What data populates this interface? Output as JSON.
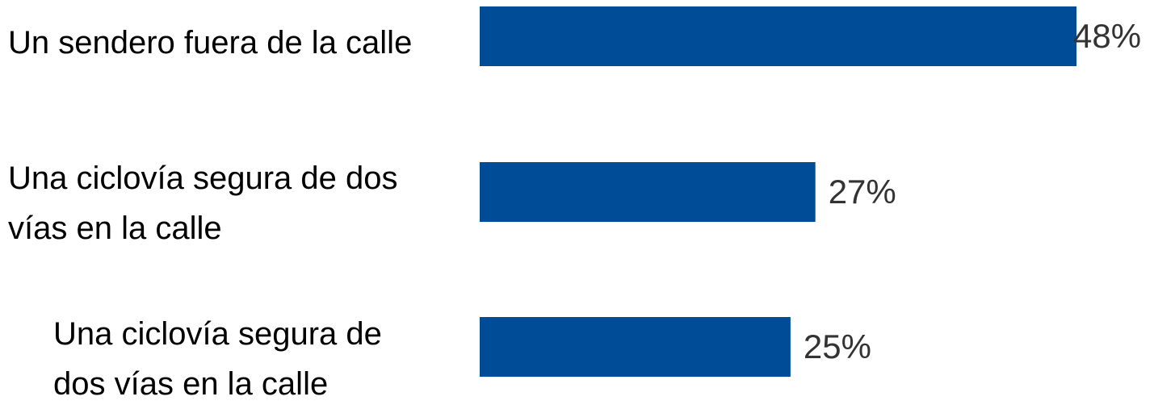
{
  "chart_data": {
    "type": "bar",
    "orientation": "horizontal",
    "categories": [
      "Un sendero fuera de la calle",
      "Una ciclovía segura de dos\nvías en la calle",
      "Una ciclovía segura de\ndos vías en la calle"
    ],
    "values": [
      48,
      27,
      25
    ],
    "value_labels": [
      "48%",
      "27%",
      "25%"
    ],
    "unit": "%",
    "xlim": [
      0,
      48
    ],
    "grid": false,
    "legend": "none",
    "bar_color": "#004c97"
  }
}
